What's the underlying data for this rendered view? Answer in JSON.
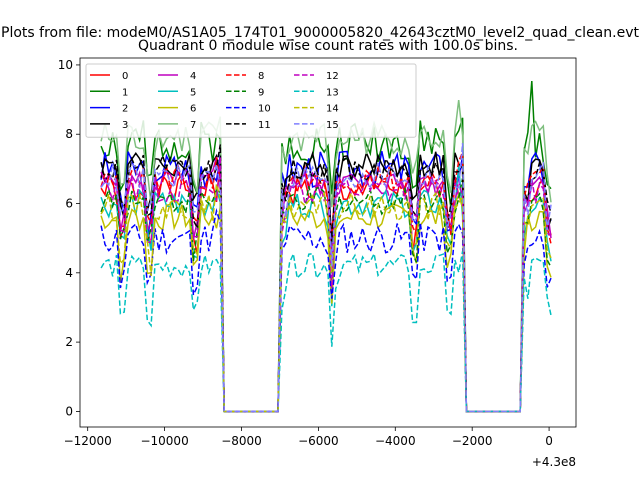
{
  "figure": {
    "suptitle": "Plots from file: modeM0/AS1A05_174T01_9000005820_42643cztM0_level2_quad_clean.evt",
    "title": "Quadrant 0 module wise count rates with 100.0s bins.",
    "x_offset_label": "+4.3e8"
  },
  "chart_data": {
    "type": "line",
    "title": "Quadrant 0 module wise count rates with 100.0s bins.",
    "xlabel": "",
    "ylabel": "",
    "x_offset": 430000000,
    "xlim": [
      -12200,
      700
    ],
    "ylim": [
      -0.45,
      10.2
    ],
    "x_ticks": [
      -12000,
      -10000,
      -8000,
      -6000,
      -4000,
      -2000,
      0
    ],
    "x_tick_labels": [
      "−12000",
      "−10000",
      "−8000",
      "−6000",
      "−4000",
      "−2000",
      "0"
    ],
    "y_ticks": [
      0,
      2,
      4,
      6,
      8,
      10
    ],
    "y_tick_labels": [
      "0",
      "2",
      "4",
      "6",
      "8",
      "10"
    ],
    "grid": false,
    "legend": {
      "placement": "top-left",
      "columns": 5
    },
    "gaps": [
      [
        -8450,
        -7050
      ],
      [
        -2150,
        -750
      ]
    ],
    "dips": [
      -11100,
      -10400,
      -9200,
      -5650,
      -3500,
      -2600,
      0
    ],
    "x_start": -11650,
    "x_end": 50,
    "x_step": 100,
    "series": [
      {
        "name": "0",
        "color": "#ff0000",
        "dash": "solid",
        "base": 6.4,
        "amp": 0.45,
        "seed": 1
      },
      {
        "name": "1",
        "color": "#008000",
        "dash": "solid",
        "base": 7.8,
        "amp": 0.6,
        "seed": 2
      },
      {
        "name": "2",
        "color": "#0000ff",
        "dash": "solid",
        "base": 7.0,
        "amp": 0.55,
        "seed": 3
      },
      {
        "name": "3",
        "color": "#000000",
        "dash": "solid",
        "base": 7.1,
        "amp": 0.4,
        "seed": 4
      },
      {
        "name": "4",
        "color": "#bf00bf",
        "dash": "solid",
        "base": 6.6,
        "amp": 0.4,
        "seed": 5
      },
      {
        "name": "5",
        "color": "#00bfbf",
        "dash": "solid",
        "base": 6.0,
        "amp": 0.4,
        "seed": 6
      },
      {
        "name": "6",
        "color": "#bfbf00",
        "dash": "solid",
        "base": 5.6,
        "amp": 0.4,
        "seed": 7
      },
      {
        "name": "7",
        "color": "#7fbf7f",
        "dash": "solid",
        "base": 7.9,
        "amp": 0.5,
        "seed": 8
      },
      {
        "name": "8",
        "color": "#ff0000",
        "dash": "dashed",
        "base": 6.7,
        "amp": 0.4,
        "seed": 9
      },
      {
        "name": "9",
        "color": "#008000",
        "dash": "dashed",
        "base": 6.1,
        "amp": 0.4,
        "seed": 10
      },
      {
        "name": "10",
        "color": "#0000ff",
        "dash": "dashed",
        "base": 5.0,
        "amp": 0.45,
        "seed": 11
      },
      {
        "name": "11",
        "color": "#000000",
        "dash": "dashed",
        "base": 7.0,
        "amp": 0.4,
        "seed": 12
      },
      {
        "name": "12",
        "color": "#bf00bf",
        "dash": "dashed",
        "base": 6.4,
        "amp": 0.4,
        "seed": 13
      },
      {
        "name": "13",
        "color": "#00bfbf",
        "dash": "dashed",
        "base": 4.2,
        "amp": 0.35,
        "seed": 14
      },
      {
        "name": "14",
        "color": "#bfbf00",
        "dash": "dashed",
        "base": 5.9,
        "amp": 0.4,
        "seed": 15
      },
      {
        "name": "15",
        "color": "#7f7fff",
        "dash": "dashed",
        "base": 6.8,
        "amp": 0.4,
        "seed": 16
      }
    ]
  }
}
